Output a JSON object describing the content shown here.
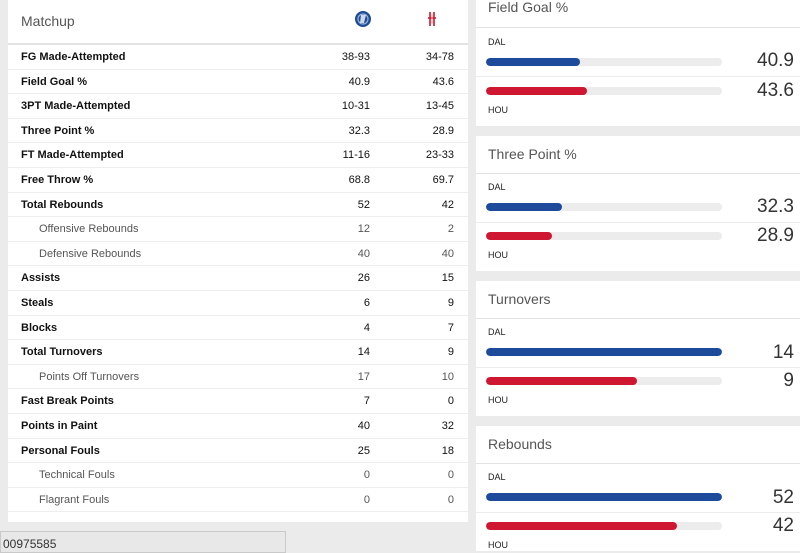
{
  "matchup": {
    "title": "Matchup",
    "colors": {
      "dal": "#1e4a9b",
      "hou": "#cf1731"
    },
    "rows": [
      {
        "label": "FG Made-Attempted",
        "dal": "38-93",
        "hou": "34-78",
        "sub": false
      },
      {
        "label": "Field Goal %",
        "dal": "40.9",
        "hou": "43.6",
        "sub": false
      },
      {
        "label": "3PT Made-Attempted",
        "dal": "10-31",
        "hou": "13-45",
        "sub": false
      },
      {
        "label": "Three Point %",
        "dal": "32.3",
        "hou": "28.9",
        "sub": false
      },
      {
        "label": "FT Made-Attempted",
        "dal": "11-16",
        "hou": "23-33",
        "sub": false
      },
      {
        "label": "Free Throw %",
        "dal": "68.8",
        "hou": "69.7",
        "sub": false
      },
      {
        "label": "Total Rebounds",
        "dal": "52",
        "hou": "42",
        "sub": false
      },
      {
        "label": "Offensive Rebounds",
        "dal": "12",
        "hou": "2",
        "sub": true
      },
      {
        "label": "Defensive Rebounds",
        "dal": "40",
        "hou": "40",
        "sub": true
      },
      {
        "label": "Assists",
        "dal": "26",
        "hou": "15",
        "sub": false
      },
      {
        "label": "Steals",
        "dal": "6",
        "hou": "9",
        "sub": false
      },
      {
        "label": "Blocks",
        "dal": "4",
        "hou": "7",
        "sub": false
      },
      {
        "label": "Total Turnovers",
        "dal": "14",
        "hou": "9",
        "sub": false
      },
      {
        "label": "Points Off Turnovers",
        "dal": "17",
        "hou": "10",
        "sub": true
      },
      {
        "label": "Fast Break Points",
        "dal": "7",
        "hou": "0",
        "sub": false
      },
      {
        "label": "Points in Paint",
        "dal": "40",
        "hou": "32",
        "sub": false
      },
      {
        "label": "Personal Fouls",
        "dal": "25",
        "hou": "18",
        "sub": false
      },
      {
        "label": "Technical Fouls",
        "dal": "0",
        "hou": "0",
        "sub": true
      },
      {
        "label": "Flagrant Fouls",
        "dal": "0",
        "hou": "0",
        "sub": true
      }
    ]
  },
  "footer": {
    "id_text": "00975585"
  },
  "cards": [
    {
      "title": "Field Goal %",
      "dal_label": "DAL",
      "hou_label": "HOU",
      "dal_value": "40.9",
      "hou_value": "43.6",
      "dal_fill": 0.4,
      "hou_fill": 0.43
    },
    {
      "title": "Three Point %",
      "dal_label": "DAL",
      "hou_label": "HOU",
      "dal_value": "32.3",
      "hou_value": "28.9",
      "dal_fill": 0.32,
      "hou_fill": 0.28
    },
    {
      "title": "Turnovers",
      "dal_label": "DAL",
      "hou_label": "HOU",
      "dal_value": "14",
      "hou_value": "9",
      "dal_fill": 1.0,
      "hou_fill": 0.64
    },
    {
      "title": "Rebounds",
      "dal_label": "DAL",
      "hou_label": "HOU",
      "dal_value": "52",
      "hou_value": "42",
      "dal_fill": 1.0,
      "hou_fill": 0.81
    }
  ]
}
